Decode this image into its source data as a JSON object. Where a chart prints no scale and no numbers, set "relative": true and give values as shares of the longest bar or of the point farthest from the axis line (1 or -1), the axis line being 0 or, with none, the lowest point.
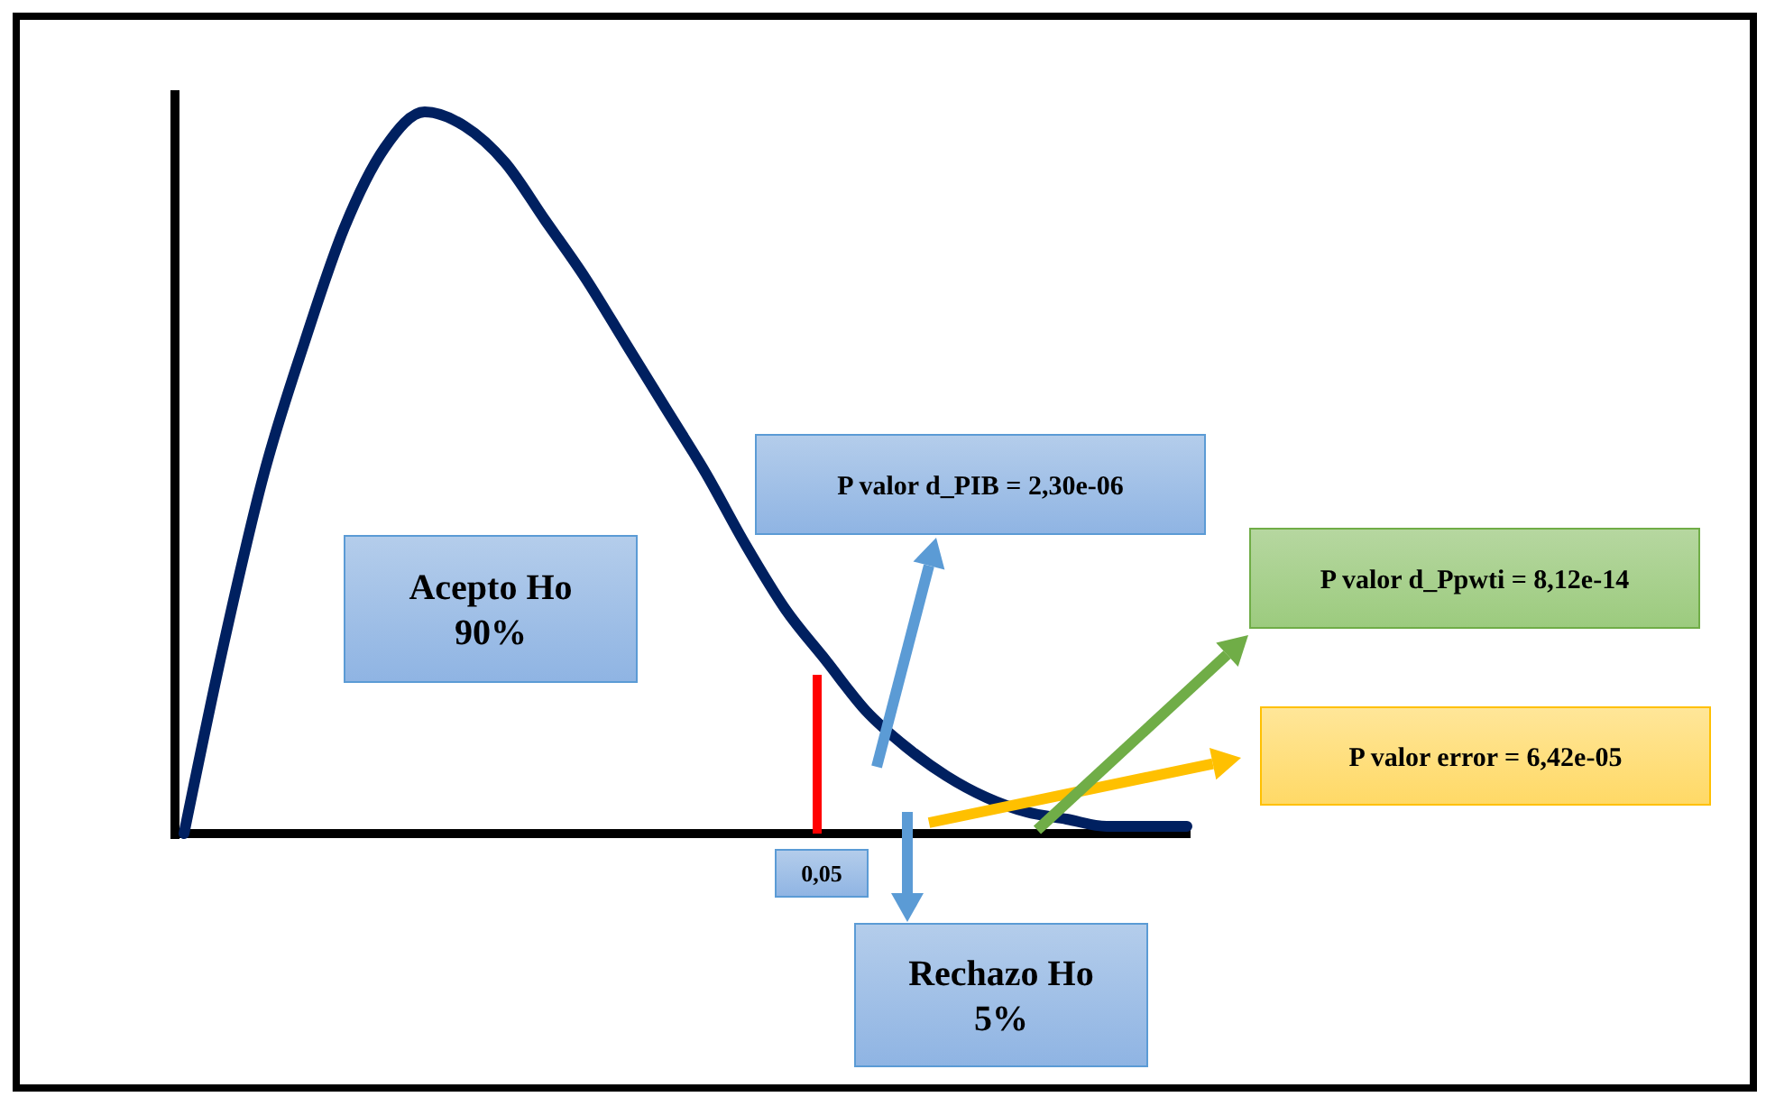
{
  "chart_data": {
    "type": "line",
    "relative": true,
    "categories": [
      null,
      null,
      null,
      null,
      null,
      null,
      null,
      null,
      null,
      null,
      null,
      null,
      null,
      null,
      null,
      null,
      null,
      null,
      null,
      null,
      null,
      null,
      null,
      null,
      null,
      null
    ],
    "series": [
      {
        "color": "#002060",
        "values": [
          0.0,
          0.265,
          0.5,
          0.68,
          0.84,
          0.95,
          1.0,
          0.98,
          0.93,
          0.85,
          0.77,
          0.68,
          0.59,
          0.5,
          0.4,
          0.31,
          0.24,
          0.17,
          0.12,
          0.08,
          0.05,
          0.03,
          0.02,
          0.01,
          0.01,
          0.01
        ]
      }
    ],
    "annotations": [
      "Acepto Ho\n90%",
      "P valor d_PIB = 2,30e-06",
      "P valor d_Ppwti = 8,12e-14",
      "P valor error = 6,42e-05",
      "0,05",
      "Rechazo Ho\n5%"
    ]
  }
}
